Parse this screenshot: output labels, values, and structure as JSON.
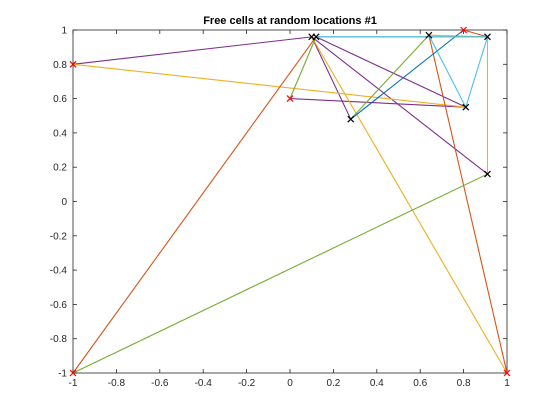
{
  "chart_data": {
    "type": "line",
    "title": "Free cells at random locations #1",
    "xlabel": "",
    "ylabel": "",
    "xlim": [
      -1,
      1
    ],
    "ylim": [
      -1,
      1
    ],
    "x_ticks": [
      -1,
      -0.8,
      -0.6,
      -0.4,
      -0.2,
      0,
      0.2,
      0.4,
      0.6,
      0.8,
      1
    ],
    "x_tick_labels": [
      "-1",
      "-0.8",
      "-0.6",
      "-0.4",
      "-0.2",
      "0",
      "0.2",
      "0.4",
      "0.6",
      "0.8",
      "1"
    ],
    "y_ticks": [
      -1,
      -0.8,
      -0.6,
      -0.4,
      -0.2,
      0,
      0.2,
      0.4,
      0.6,
      0.8,
      1
    ],
    "y_tick_labels": [
      "-1",
      "-0.8",
      "-0.6",
      "-0.4",
      "-0.2",
      "0",
      "0.2",
      "0.4",
      "0.6",
      "0.8",
      "1"
    ],
    "grid": false,
    "box": true,
    "free_cells": {
      "marker": "x",
      "color": "#ff0000",
      "points": [
        [
          -1,
          0.8
        ],
        [
          0,
          0.6
        ],
        [
          0.8,
          1.0
        ],
        [
          -1,
          -1
        ],
        [
          1,
          -1
        ]
      ]
    },
    "random_cells": {
      "marker": "x",
      "color": "#000000",
      "points": [
        [
          0.1,
          0.96
        ],
        [
          0.12,
          0.96
        ],
        [
          0.64,
          0.97
        ],
        [
          0.91,
          0.96
        ],
        [
          0.81,
          0.55
        ],
        [
          0.28,
          0.48
        ],
        [
          0.91,
          0.16
        ]
      ]
    },
    "series": [
      {
        "color": "#7e2f8e",
        "points": [
          [
            -1,
            0.8
          ],
          [
            0.1,
            0.96
          ]
        ]
      },
      {
        "color": "#7e2f8e",
        "points": [
          [
            0,
            0.6
          ],
          [
            0.81,
            0.55
          ]
        ]
      },
      {
        "color": "#7e2f8e",
        "points": [
          [
            0.1,
            0.96
          ],
          [
            0.91,
            0.16
          ]
        ]
      },
      {
        "color": "#7e2f8e",
        "points": [
          [
            0.1,
            0.96
          ],
          [
            0.28,
            0.48
          ]
        ]
      },
      {
        "color": "#7e2f8e",
        "points": [
          [
            0.12,
            0.96
          ],
          [
            0.81,
            0.55
          ]
        ]
      },
      {
        "color": "#edb120",
        "points": [
          [
            -1,
            0.8
          ],
          [
            0.81,
            0.55
          ]
        ]
      },
      {
        "color": "#edb120",
        "points": [
          [
            0.1,
            0.96
          ],
          [
            1,
            -1
          ]
        ]
      },
      {
        "color": "#edb120",
        "points": [
          [
            0.64,
            0.97
          ],
          [
            0.91,
            0.96
          ]
        ]
      },
      {
        "color": "#edb120",
        "points": [
          [
            0.91,
            0.96
          ],
          [
            0.91,
            0.16
          ]
        ]
      },
      {
        "color": "#d95319",
        "points": [
          [
            -1,
            -1
          ],
          [
            0.12,
            0.96
          ]
        ]
      },
      {
        "color": "#d95319",
        "points": [
          [
            0.64,
            0.97
          ],
          [
            1,
            -1
          ]
        ]
      },
      {
        "color": "#d95319",
        "points": [
          [
            0.8,
            1.0
          ],
          [
            0.91,
            0.96
          ]
        ]
      },
      {
        "color": "#77ac30",
        "points": [
          [
            -1,
            -1
          ],
          [
            0.91,
            0.16
          ]
        ]
      },
      {
        "color": "#77ac30",
        "points": [
          [
            0,
            0.6
          ],
          [
            0.12,
            0.96
          ]
        ]
      },
      {
        "color": "#77ac30",
        "points": [
          [
            0.28,
            0.48
          ],
          [
            0.64,
            0.97
          ]
        ]
      },
      {
        "color": "#77ac30",
        "points": [
          [
            0.12,
            0.96
          ],
          [
            0.91,
            0.96
          ]
        ]
      },
      {
        "color": "#0072bd",
        "points": [
          [
            0.28,
            0.48
          ],
          [
            0.8,
            1.0
          ]
        ]
      },
      {
        "color": "#4dbeee",
        "points": [
          [
            0.12,
            0.96
          ],
          [
            0.91,
            0.96
          ]
        ]
      },
      {
        "color": "#4dbeee",
        "points": [
          [
            0.91,
            0.96
          ],
          [
            0.81,
            0.55
          ]
        ]
      },
      {
        "color": "#4dbeee",
        "points": [
          [
            0.64,
            0.97
          ],
          [
            0.81,
            0.55
          ]
        ]
      }
    ]
  }
}
